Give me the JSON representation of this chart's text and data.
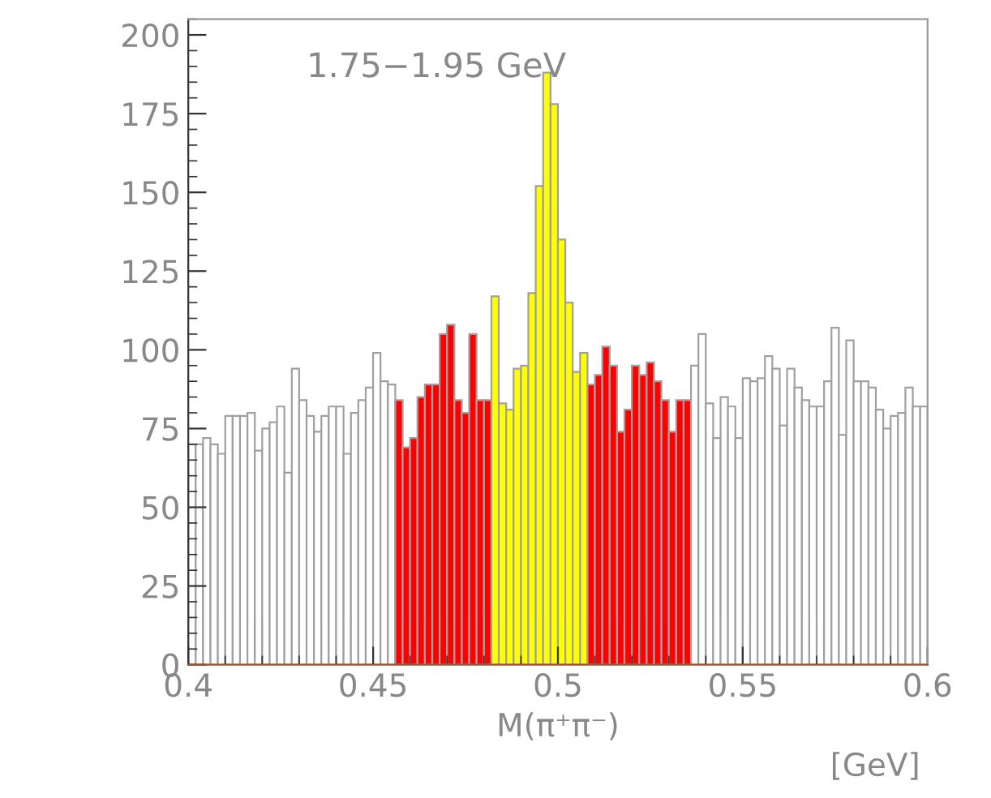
{
  "chart_data": {
    "type": "histogram",
    "title": "1.75−1.95 GeV",
    "xlabel": "M(π⁺π⁻)",
    "annotations": [
      "[GeV]"
    ],
    "bins": [
      0.4,
      0.402,
      0.404,
      0.406,
      0.408,
      0.41,
      0.412,
      0.414,
      0.416,
      0.418,
      0.42,
      0.422,
      0.424,
      0.426,
      0.428,
      0.43,
      0.432,
      0.434,
      0.436,
      0.438,
      0.44,
      0.442,
      0.444,
      0.446,
      0.448,
      0.45,
      0.452,
      0.454,
      0.456,
      0.458,
      0.46,
      0.462,
      0.464,
      0.466,
      0.468,
      0.47,
      0.472,
      0.474,
      0.476,
      0.478,
      0.48,
      0.482,
      0.484,
      0.486,
      0.488,
      0.49,
      0.492,
      0.494,
      0.496,
      0.498,
      0.5,
      0.502,
      0.504,
      0.506,
      0.508,
      0.51,
      0.512,
      0.514,
      0.516,
      0.518,
      0.52,
      0.522,
      0.524,
      0.526,
      0.528,
      0.53,
      0.532,
      0.534,
      0.536,
      0.538,
      0.54,
      0.542,
      0.544,
      0.546,
      0.548,
      0.55,
      0.552,
      0.554,
      0.556,
      0.558,
      0.56,
      0.562,
      0.564,
      0.566,
      0.568,
      0.57,
      0.572,
      0.574,
      0.576,
      0.578,
      0.58,
      0.582,
      0.584,
      0.586,
      0.588,
      0.59,
      0.592,
      0.594,
      0.596,
      0.598,
      0.6
    ],
    "values": [
      70,
      70,
      72,
      70,
      67,
      79,
      79,
      79,
      80,
      68,
      75,
      77,
      82,
      61,
      94,
      84,
      79,
      74,
      79,
      82,
      82,
      67,
      80,
      84,
      88,
      99,
      90,
      89,
      84,
      69,
      72,
      85,
      89,
      89,
      105,
      108,
      84,
      80,
      105,
      84,
      84,
      117,
      83,
      81,
      94,
      95,
      118,
      152,
      188,
      178,
      135,
      115,
      93,
      99,
      89,
      92,
      101,
      95,
      74,
      81,
      95,
      92,
      96,
      90,
      84,
      74,
      84,
      84,
      95,
      105,
      83,
      72,
      85,
      82,
      72,
      91,
      90,
      91,
      98,
      94,
      76,
      94,
      88,
      84,
      82,
      82,
      90,
      107,
      73,
      103,
      90,
      90,
      88,
      81,
      75,
      79,
      80,
      88,
      82,
      82
    ],
    "colors": [
      "#ffffff",
      "#ffffff",
      "#ffffff",
      "#ffffff",
      "#ffffff",
      "#ffffff",
      "#ffffff",
      "#ffffff",
      "#ffffff",
      "#ffffff",
      "#ffffff",
      "#ffffff",
      "#ffffff",
      "#ffffff",
      "#ffffff",
      "#ffffff",
      "#ffffff",
      "#ffffff",
      "#ffffff",
      "#ffffff",
      "#ffffff",
      "#ffffff",
      "#ffffff",
      "#ffffff",
      "#ffffff",
      "#ffffff",
      "#ffffff",
      "#ffffff",
      "#ff0000",
      "#ff0000",
      "#ff0000",
      "#ff0000",
      "#ff0000",
      "#ff0000",
      "#ff0000",
      "#ff0000",
      "#ff0000",
      "#ff0000",
      "#ff0000",
      "#ff0000",
      "#ff0000",
      "#ffff00",
      "#ffff00",
      "#ffff00",
      "#ffff00",
      "#ffff00",
      "#ffff00",
      "#ffff00",
      "#ffff00",
      "#ffff00",
      "#ffff00",
      "#ffff00",
      "#ffff00",
      "#ffff00",
      "#ff0000",
      "#ff0000",
      "#ff0000",
      "#ff0000",
      "#ff0000",
      "#ff0000",
      "#ff0000",
      "#ff0000",
      "#ff0000",
      "#ff0000",
      "#ff0000",
      "#ff0000",
      "#ff0000",
      "#ff0000",
      "#ffffff",
      "#ffffff",
      "#ffffff",
      "#ffffff",
      "#ffffff",
      "#ffffff",
      "#ffffff",
      "#ffffff",
      "#ffffff",
      "#ffffff",
      "#ffffff",
      "#ffffff",
      "#ffffff",
      "#ffffff",
      "#ffffff",
      "#ffffff",
      "#ffffff",
      "#ffffff",
      "#ffffff",
      "#ffffff",
      "#ffffff",
      "#ffffff",
      "#ffffff",
      "#ffffff",
      "#ffffff",
      "#ffffff",
      "#ffffff",
      "#ffffff",
      "#ffffff",
      "#ffffff",
      "#ffffff",
      "#ffffff"
    ],
    "xlim": [
      0.4,
      0.6
    ],
    "ylim": [
      0,
      205
    ],
    "xticks": [
      0.4,
      0.45,
      0.5,
      0.55,
      0.6
    ],
    "yticks": [
      0,
      25,
      50,
      75,
      100,
      125,
      150,
      175,
      200
    ],
    "grid": false,
    "legend": false
  }
}
